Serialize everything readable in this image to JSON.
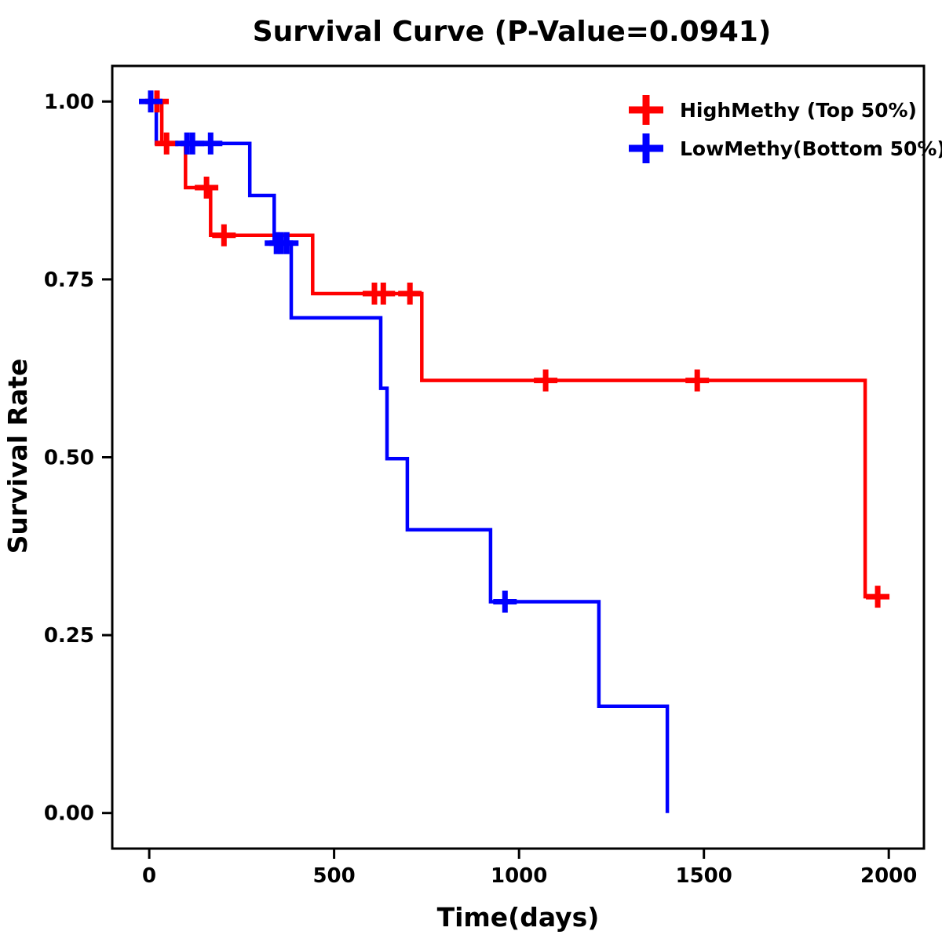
{
  "title": "Survival Curve (P-Value=0.0941)",
  "axes": {
    "xlabel": "Time(days)",
    "ylabel": "Survival Rate",
    "x_ticks": [
      {
        "value": 0,
        "label": "0"
      },
      {
        "value": 500,
        "label": "500"
      },
      {
        "value": 1000,
        "label": "1000"
      },
      {
        "value": 1500,
        "label": "1500"
      },
      {
        "value": 2000,
        "label": "2000"
      }
    ],
    "y_ticks": [
      {
        "value": 1.0,
        "label": "1.00"
      },
      {
        "value": 0.75,
        "label": "0.75"
      },
      {
        "value": 0.5,
        "label": "0.50"
      },
      {
        "value": 0.25,
        "label": "0.25"
      },
      {
        "value": 0.0,
        "label": "0.00"
      }
    ]
  },
  "legend": {
    "items": [
      {
        "label": "HighMethy (Top 50%)",
        "color": "#ff0000",
        "marker": "plus-censor-icon"
      },
      {
        "label": "LowMethy(Bottom 50%)",
        "color": "#0000ff",
        "marker": "plus-censor-icon"
      }
    ]
  },
  "colors": {
    "high_methy": "#ff0000",
    "low_methy": "#0000ff",
    "frame": "#000000",
    "background": "#ffffff"
  },
  "chart_data": {
    "type": "line",
    "subtype": "kaplan-meier-step",
    "title": "Survival Curve (P-Value=0.0941)",
    "p_value": 0.0941,
    "xlabel": "Time(days)",
    "ylabel": "Survival Rate",
    "xlim": [
      -100,
      2095
    ],
    "ylim": [
      -0.05,
      1.05
    ],
    "grid": false,
    "legend_position": "top-right",
    "series": [
      {
        "name": "HighMethy (Top 50%)",
        "color": "#ff0000",
        "steps": [
          [
            0,
            1.0
          ],
          [
            34,
            0.941
          ],
          [
            98,
            0.879
          ],
          [
            166,
            0.812
          ],
          [
            442,
            0.73
          ],
          [
            737,
            0.608
          ],
          [
            1936,
            0.304
          ]
        ],
        "end_time": 2000,
        "censor_marks": [
          [
            21,
            1.0
          ],
          [
            47,
            0.941
          ],
          [
            155,
            0.879
          ],
          [
            202,
            0.812
          ],
          [
            609,
            0.73
          ],
          [
            633,
            0.73
          ],
          [
            705,
            0.73
          ],
          [
            1072,
            0.608
          ],
          [
            1482,
            0.608
          ],
          [
            1970,
            0.304
          ]
        ]
      },
      {
        "name": "LowMethy(Bottom 50%)",
        "color": "#0000ff",
        "steps": [
          [
            0,
            1.0
          ],
          [
            19,
            0.941
          ],
          [
            272,
            0.868
          ],
          [
            338,
            0.801
          ],
          [
            384,
            0.696
          ],
          [
            626,
            0.597
          ],
          [
            643,
            0.498
          ],
          [
            698,
            0.398
          ],
          [
            923,
            0.297
          ],
          [
            1216,
            0.15
          ],
          [
            1401,
            0.0
          ]
        ],
        "end_time": 1401,
        "censor_marks": [
          [
            4,
            1.0
          ],
          [
            102,
            0.941
          ],
          [
            117,
            0.941
          ],
          [
            166,
            0.941
          ],
          [
            344,
            0.801
          ],
          [
            357,
            0.801
          ],
          [
            372,
            0.801
          ],
          [
            962,
            0.297
          ]
        ]
      }
    ]
  }
}
